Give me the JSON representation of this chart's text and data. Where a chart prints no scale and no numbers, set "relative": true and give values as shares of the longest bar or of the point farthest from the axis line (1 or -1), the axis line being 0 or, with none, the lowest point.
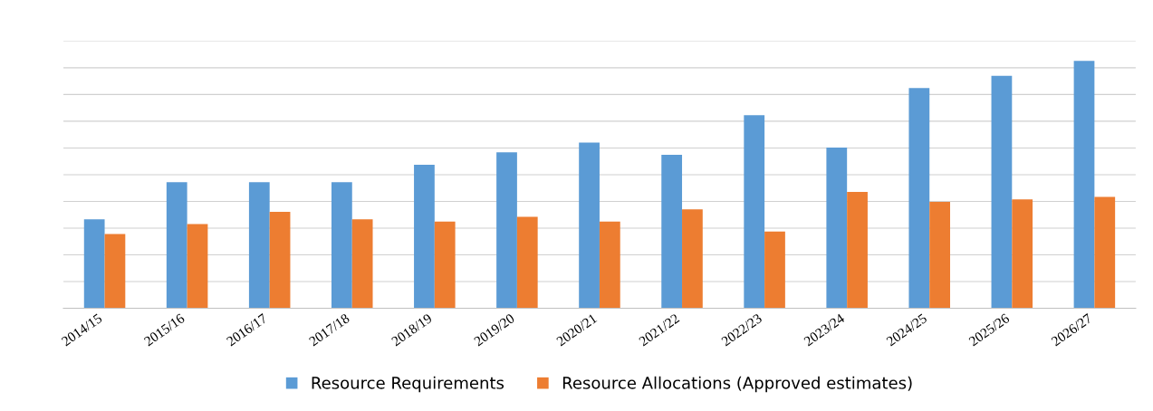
{
  "chart_data": {
    "type": "bar",
    "relative": true,
    "categories": [
      "2014/15",
      "2015/16",
      "2016/17",
      "2017/18",
      "2018/19",
      "2019/20",
      "2020/21",
      "2021/22",
      "2022/23",
      "2023/24",
      "2024/25",
      "2025/26",
      "2026/27"
    ],
    "series": [
      {
        "name": "Resource Requirements",
        "color": "#5b9bd5",
        "values": [
          0.36,
          0.51,
          0.51,
          0.51,
          0.58,
          0.63,
          0.67,
          0.62,
          0.78,
          0.65,
          0.89,
          0.94,
          1.0
        ]
      },
      {
        "name": "Resource Allocations (Approved estimates)",
        "color": "#ed7d31",
        "values": [
          0.3,
          0.34,
          0.39,
          0.36,
          0.35,
          0.37,
          0.35,
          0.4,
          0.31,
          0.47,
          0.43,
          0.44,
          0.45
        ]
      }
    ],
    "grid": "y",
    "legend": "bottom"
  }
}
